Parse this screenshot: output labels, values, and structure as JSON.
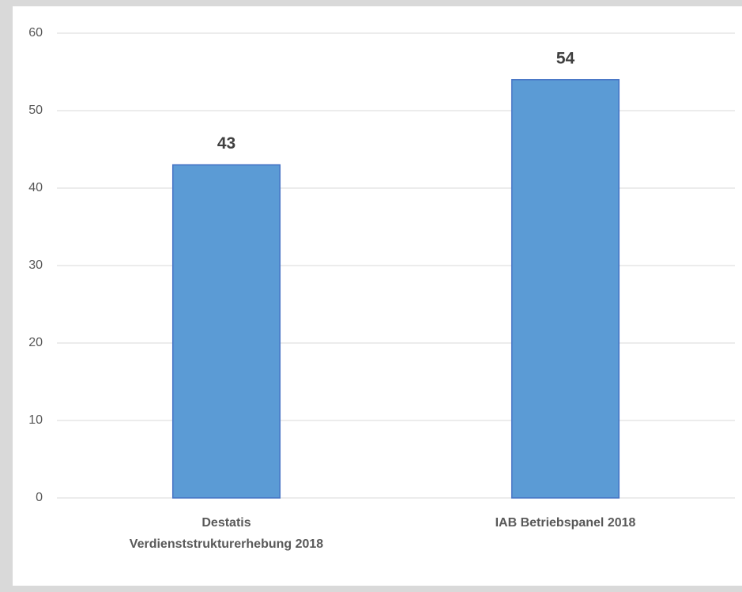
{
  "chart_data": {
    "type": "bar",
    "categories": [
      "Destatis\nVerdienststrukturerhebung 2018",
      "IAB Betriebspanel 2018"
    ],
    "values": [
      43,
      54
    ],
    "color": "#5b9bd5",
    "edge_color": "#4472c4",
    "ylim": [
      0,
      60
    ],
    "yticks": [
      0,
      10,
      20,
      30,
      40,
      50,
      60
    ],
    "grid": true
  }
}
